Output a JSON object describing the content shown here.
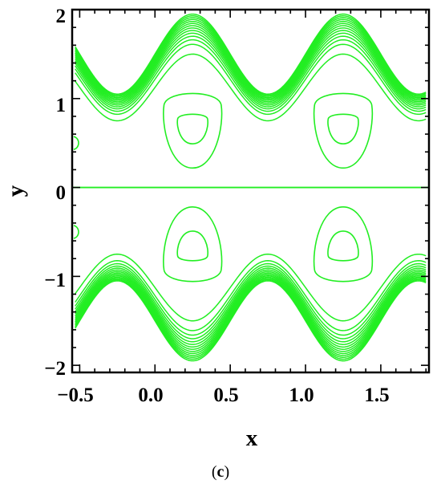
{
  "chart_data": {
    "type": "contour",
    "xlabel": "x",
    "ylabel": "y",
    "xlim": [
      -0.55,
      1.82
    ],
    "ylim": [
      -2.08,
      2.0
    ],
    "x_ticks": [
      "-0.5",
      "0.0",
      "0.5",
      "1.0",
      "1.5"
    ],
    "y_ticks": [
      "2",
      "1",
      "0",
      "-1",
      "-2"
    ],
    "x_tick_values": [
      -0.5,
      0.0,
      0.5,
      1.0,
      1.5
    ],
    "y_tick_values": [
      2,
      1,
      0,
      -1,
      -2
    ],
    "line_color": "#22ee22",
    "separatrix_y": 0,
    "band_wave": {
      "period": 1.0,
      "upper_crest_x": [
        0.25,
        1.25
      ],
      "upper_trough_x": [
        -0.25,
        0.75
      ],
      "upper_crest_y": [
        1.5,
        1.95
      ],
      "upper_trough_y": [
        0.75,
        1.05
      ],
      "contour_count": 14
    },
    "islands": [
      {
        "center": [
          0.25,
          0.67
        ],
        "outer_half_height": 0.43,
        "inner_size": 0.11
      },
      {
        "center": [
          1.25,
          0.67
        ],
        "outer_half_height": 0.43,
        "inner_size": 0.11
      },
      {
        "center": [
          0.25,
          -0.67
        ],
        "outer_half_height": 0.43,
        "inner_size": 0.11
      },
      {
        "center": [
          1.25,
          -0.67
        ],
        "outer_half_height": 0.43,
        "inner_size": 0.11
      }
    ],
    "edge_arcs": [
      {
        "x": -0.55,
        "y": 0.5
      },
      {
        "x": -0.55,
        "y": -0.5
      }
    ]
  },
  "panel_label": {
    "open": "(",
    "letter": "c",
    "close": ")"
  }
}
